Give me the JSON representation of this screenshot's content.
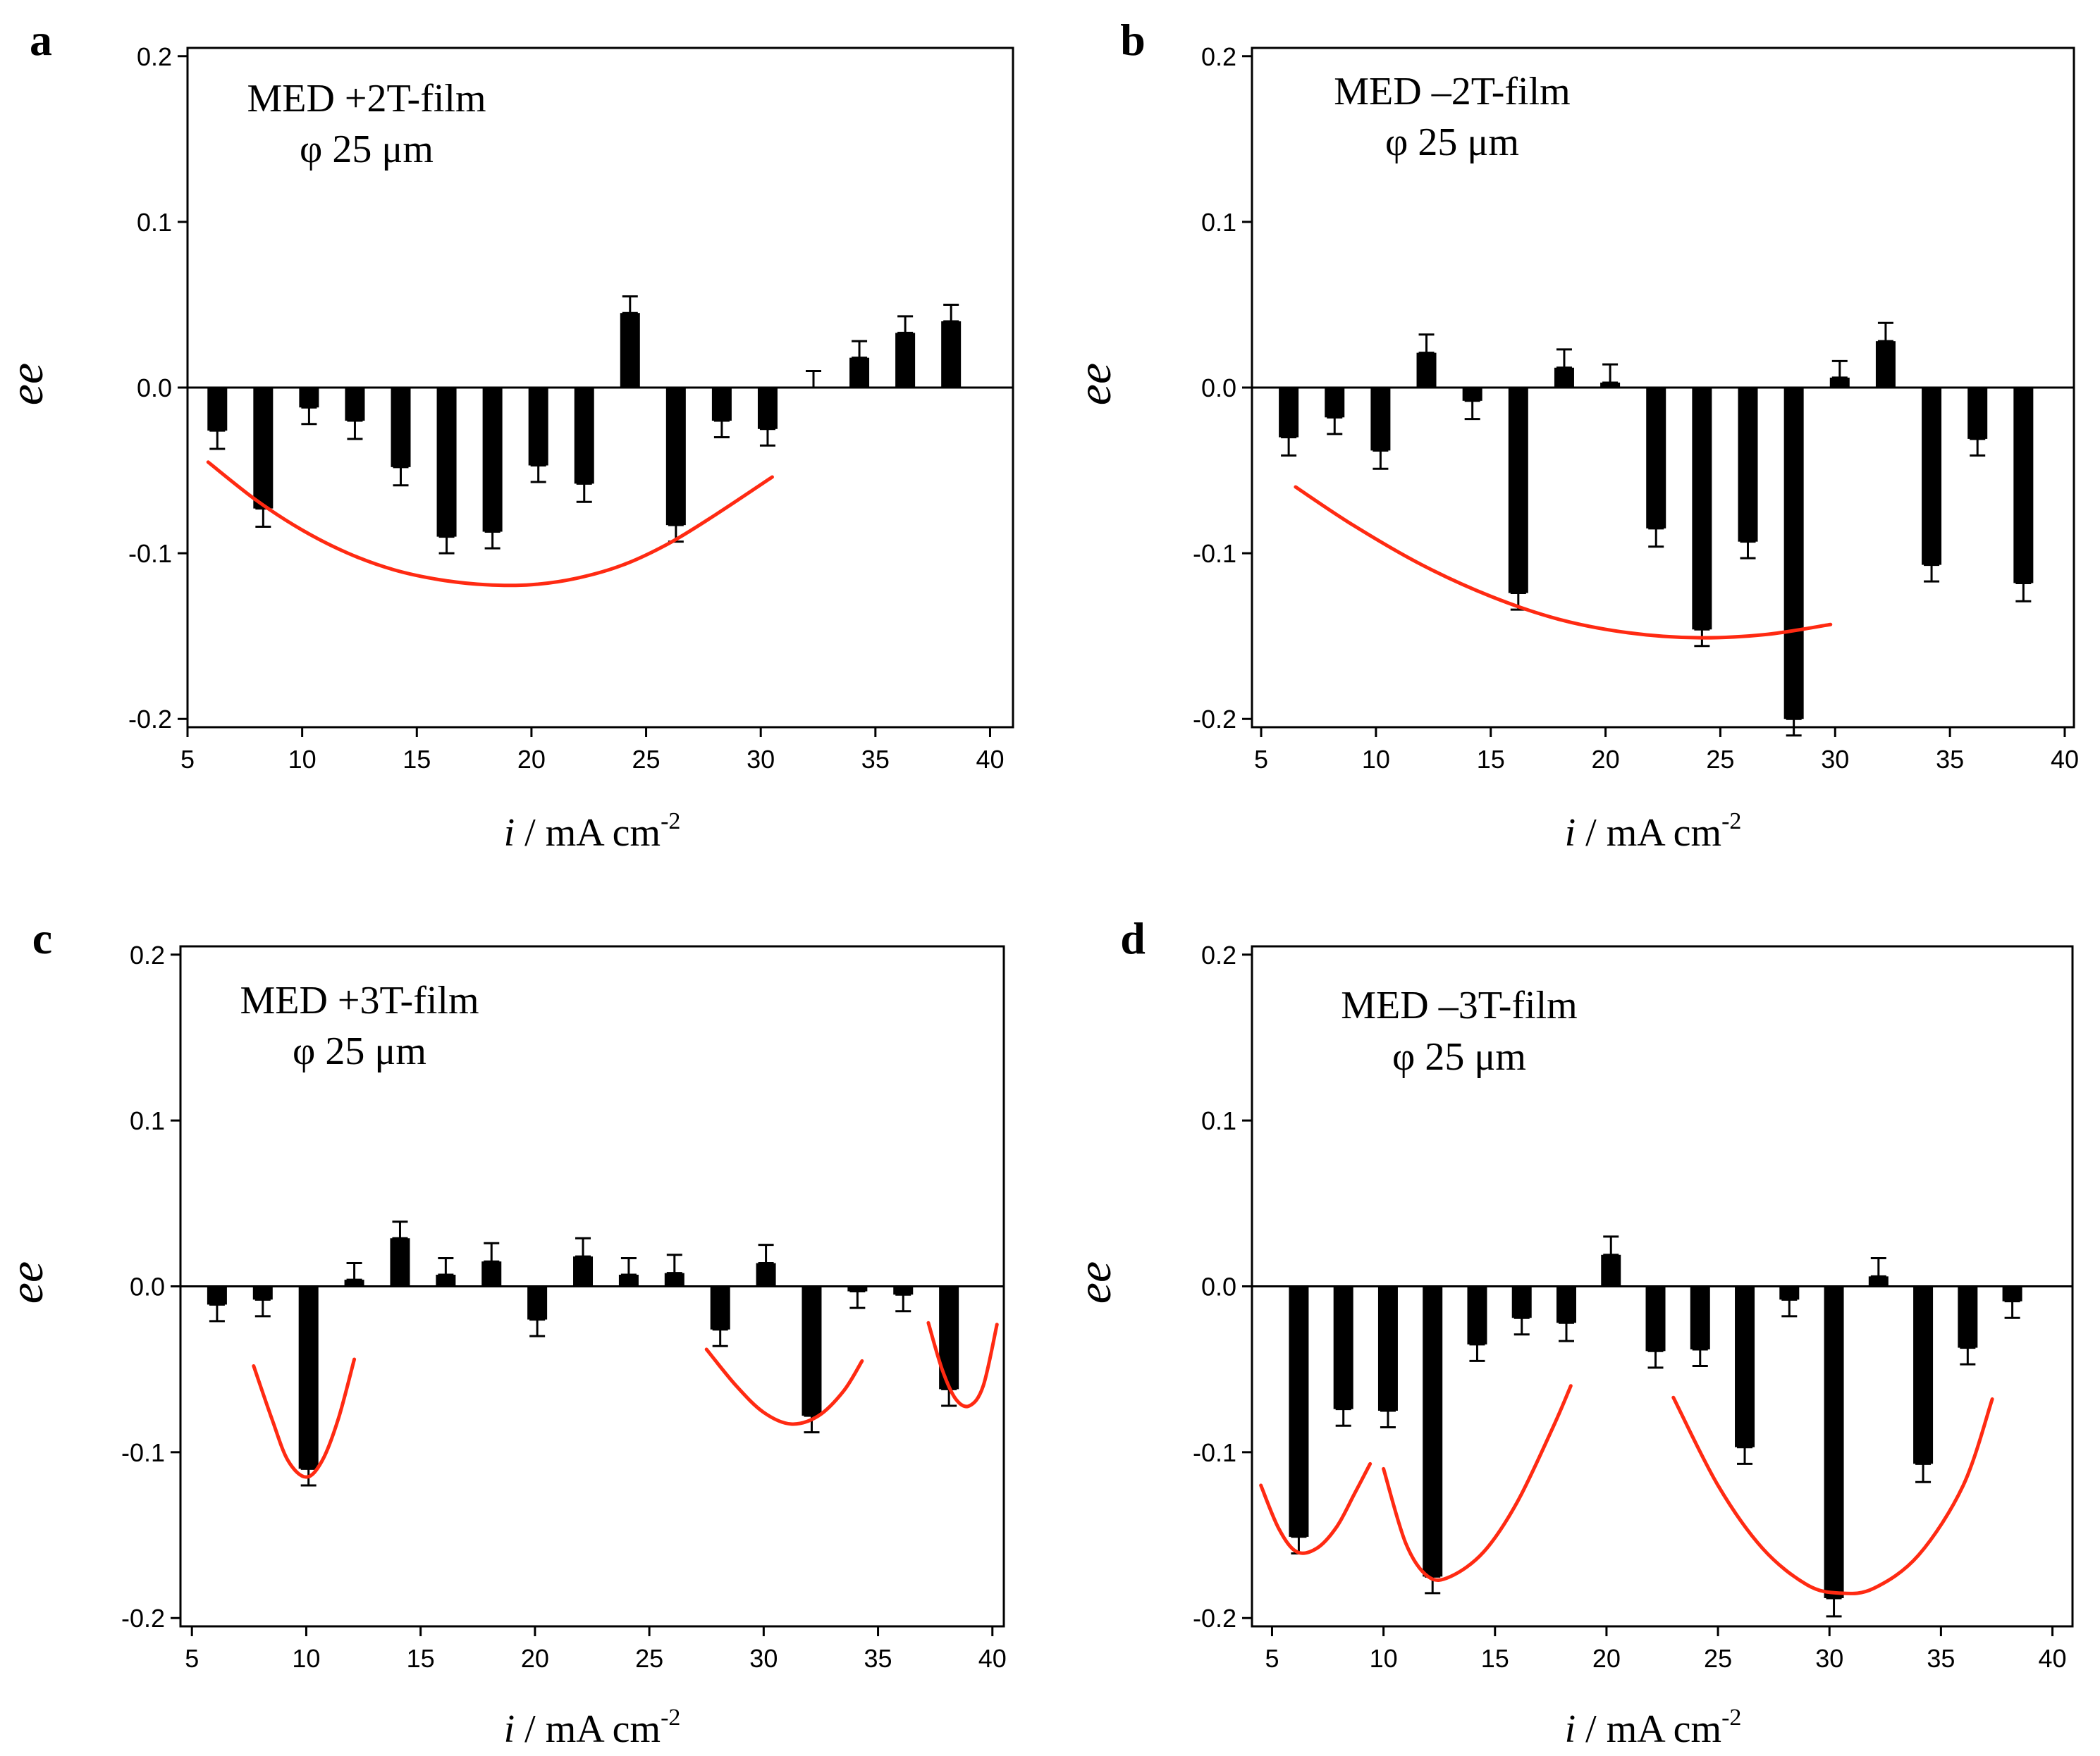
{
  "chart_data": [
    {
      "panel_letter": "a",
      "type": "bar",
      "title": "MED +2T-film",
      "subtitle": "φ 25 μm",
      "xlabel_italic": "i",
      "xlabel_rest": " / mA cm",
      "xlabel_sup": "-2",
      "ylabel": "ee",
      "xlim": [
        5,
        41
      ],
      "ylim": [
        -0.205,
        0.205
      ],
      "xticks": [
        5,
        10,
        15,
        20,
        25,
        30,
        35,
        40
      ],
      "xtick_labels": [
        "5",
        "10",
        "15",
        "20",
        "25",
        "30",
        "35",
        "40"
      ],
      "yticks": [
        -0.2,
        -0.1,
        0.0,
        0.1,
        0.2
      ],
      "ytick_labels": [
        "-0.2",
        "-0.1",
        "0.0",
        "0.1",
        "0.2"
      ],
      "x": [
        6.3,
        8.3,
        10.3,
        12.3,
        14.3,
        16.3,
        18.3,
        20.3,
        22.3,
        24.3,
        26.3,
        28.3,
        30.3,
        32.3,
        34.3,
        36.3,
        38.3
      ],
      "values": [
        -0.026,
        -0.073,
        -0.012,
        -0.02,
        -0.048,
        -0.09,
        -0.087,
        -0.047,
        -0.058,
        0.045,
        -0.083,
        -0.02,
        -0.025,
        0.0,
        0.018,
        0.033,
        0.04
      ],
      "errors": [
        0.011,
        0.011,
        0.01,
        0.011,
        0.011,
        0.01,
        0.01,
        0.01,
        0.011,
        0.01,
        0.01,
        0.01,
        0.01,
        0.01,
        0.01,
        0.01,
        0.01
      ],
      "fits": [
        {
          "color": "#ff2a12",
          "x": [
            5.9,
            8,
            10,
            12,
            14,
            16,
            18,
            20,
            22,
            24,
            26,
            28,
            30.5
          ],
          "y": [
            -0.045,
            -0.068,
            -0.086,
            -0.1,
            -0.11,
            -0.116,
            -0.119,
            -0.119,
            -0.115,
            -0.107,
            -0.094,
            -0.077,
            -0.054
          ]
        }
      ]
    },
    {
      "panel_letter": "b",
      "type": "bar",
      "title": "MED –2T-film",
      "subtitle": "φ 25 μm",
      "xlabel_italic": "i",
      "xlabel_rest": " / mA cm",
      "xlabel_sup": "-2",
      "ylabel": "ee",
      "xlim": [
        4.6,
        40.4
      ],
      "ylim": [
        -0.205,
        0.205
      ],
      "xticks": [
        5,
        10,
        15,
        20,
        25,
        30,
        35,
        40
      ],
      "xtick_labels": [
        "5",
        "10",
        "15",
        "20",
        "25",
        "30",
        "35",
        "40"
      ],
      "yticks": [
        -0.2,
        -0.1,
        0.0,
        0.1,
        0.2
      ],
      "ytick_labels": [
        "-0.2",
        "-0.1",
        "0.0",
        "0.1",
        "0.2"
      ],
      "x": [
        6.2,
        8.2,
        10.2,
        12.2,
        14.2,
        16.2,
        18.2,
        20.2,
        22.2,
        24.2,
        26.2,
        28.2,
        30.2,
        32.2,
        34.2,
        36.2,
        38.2
      ],
      "values": [
        -0.03,
        -0.018,
        -0.038,
        0.021,
        -0.008,
        -0.124,
        0.012,
        0.003,
        -0.085,
        -0.146,
        -0.093,
        -0.2,
        0.006,
        0.028,
        -0.107,
        -0.031,
        -0.118
      ],
      "errors": [
        0.011,
        0.01,
        0.011,
        0.011,
        0.011,
        0.01,
        0.011,
        0.011,
        0.011,
        0.01,
        0.01,
        0.01,
        0.01,
        0.011,
        0.01,
        0.01,
        0.011
      ],
      "fits": [
        {
          "color": "#ff2a12",
          "x": [
            6.5,
            9,
            12,
            15,
            18,
            21,
            24,
            27,
            29.8
          ],
          "y": [
            -0.06,
            -0.083,
            -0.107,
            -0.126,
            -0.14,
            -0.148,
            -0.151,
            -0.149,
            -0.143
          ]
        }
      ]
    },
    {
      "panel_letter": "c",
      "type": "bar",
      "title": "MED +3T-film",
      "subtitle": "φ 25 μm",
      "xlabel_italic": "i",
      "xlabel_rest": " / mA cm",
      "xlabel_sup": "-2",
      "ylabel": "ee",
      "xlim": [
        4.5,
        40.5
      ],
      "ylim": [
        -0.205,
        0.205
      ],
      "xticks": [
        5,
        10,
        15,
        20,
        25,
        30,
        35,
        40
      ],
      "xtick_labels": [
        "5",
        "10",
        "15",
        "20",
        "25",
        "30",
        "35",
        "40"
      ],
      "yticks": [
        -0.2,
        -0.1,
        0.0,
        0.1,
        0.2
      ],
      "ytick_labels": [
        "-0.2",
        "-0.1",
        "0.0",
        "0.1",
        "0.2"
      ],
      "x": [
        6.1,
        8.1,
        10.1,
        12.1,
        14.1,
        16.1,
        18.1,
        20.1,
        22.1,
        24.1,
        26.1,
        28.1,
        30.1,
        32.1,
        34.1,
        36.1,
        38.1
      ],
      "values": [
        -0.011,
        -0.008,
        -0.11,
        0.004,
        0.029,
        0.007,
        0.015,
        -0.02,
        0.018,
        0.007,
        0.008,
        -0.026,
        0.014,
        -0.078,
        -0.003,
        -0.005,
        -0.062
      ],
      "errors": [
        0.01,
        0.01,
        0.01,
        0.01,
        0.01,
        0.01,
        0.011,
        0.01,
        0.011,
        0.01,
        0.011,
        0.01,
        0.011,
        0.01,
        0.01,
        0.01,
        0.01
      ],
      "fits": [
        {
          "color": "#ff2a12",
          "x": [
            7.7,
            8.5,
            9.2,
            10,
            10.7,
            11.4,
            12.1
          ],
          "y": [
            -0.048,
            -0.08,
            -0.105,
            -0.115,
            -0.105,
            -0.08,
            -0.044
          ]
        },
        {
          "color": "#ff2a12",
          "x": [
            27.5,
            28.8,
            30,
            31.2,
            32.4,
            33.5,
            34.3
          ],
          "y": [
            -0.038,
            -0.06,
            -0.076,
            -0.083,
            -0.078,
            -0.063,
            -0.045
          ]
        },
        {
          "color": "#ff2a12",
          "x": [
            37.2,
            37.8,
            38.4,
            39,
            39.6,
            40.2
          ],
          "y": [
            -0.022,
            -0.05,
            -0.068,
            -0.072,
            -0.06,
            -0.023
          ]
        }
      ]
    },
    {
      "panel_letter": "d",
      "type": "bar",
      "title": "MED –3T-film",
      "subtitle": "φ 25 μm",
      "xlabel_italic": "i",
      "xlabel_rest": " / mA cm",
      "xlabel_sup": "-2",
      "ylabel": "ee",
      "xlim": [
        4.1,
        40.9
      ],
      "ylim": [
        -0.205,
        0.205
      ],
      "xticks": [
        5,
        10,
        15,
        20,
        25,
        30,
        35,
        40
      ],
      "xtick_labels": [
        "5",
        "10",
        "15",
        "20",
        "25",
        "30",
        "35",
        "40"
      ],
      "yticks": [
        -0.2,
        -0.1,
        0.0,
        0.1,
        0.2
      ],
      "ytick_labels": [
        "-0.2",
        "-0.1",
        "0.0",
        "0.1",
        "0.2"
      ],
      "x": [
        6.2,
        8.2,
        10.2,
        12.2,
        14.2,
        16.2,
        18.2,
        20.2,
        22.2,
        24.2,
        26.2,
        28.2,
        30.2,
        32.2,
        34.2,
        36.2,
        38.2
      ],
      "values": [
        -0.151,
        -0.074,
        -0.075,
        -0.175,
        -0.035,
        -0.019,
        -0.022,
        0.019,
        -0.039,
        -0.038,
        -0.097,
        -0.008,
        -0.188,
        0.006,
        -0.107,
        -0.037,
        -0.009
      ],
      "errors": [
        0.01,
        0.01,
        0.01,
        0.01,
        0.01,
        0.01,
        0.011,
        0.011,
        0.01,
        0.01,
        0.01,
        0.01,
        0.011,
        0.011,
        0.011,
        0.01,
        0.01
      ],
      "fits": [
        {
          "color": "#ff2a12",
          "x": [
            4.5,
            5.3,
            6.1,
            7,
            7.9,
            8.7,
            9.4
          ],
          "y": [
            -0.12,
            -0.146,
            -0.16,
            -0.158,
            -0.145,
            -0.125,
            -0.107
          ]
        },
        {
          "color": "#ff2a12",
          "x": [
            10,
            11,
            12,
            13,
            14.5,
            16,
            17.6,
            18.4
          ],
          "y": [
            -0.11,
            -0.155,
            -0.175,
            -0.175,
            -0.16,
            -0.13,
            -0.085,
            -0.06
          ]
        },
        {
          "color": "#ff2a12",
          "x": [
            23,
            25,
            27,
            29,
            30.5,
            32,
            34,
            36,
            37.3
          ],
          "y": [
            -0.067,
            -0.12,
            -0.158,
            -0.18,
            -0.185,
            -0.182,
            -0.162,
            -0.12,
            -0.068
          ]
        }
      ]
    }
  ]
}
